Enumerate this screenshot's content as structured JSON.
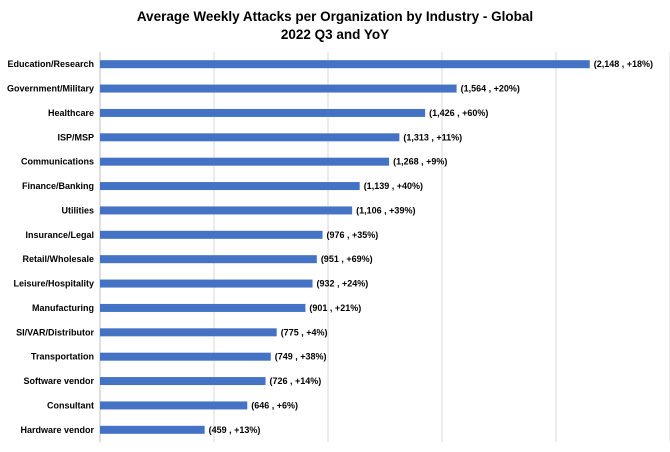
{
  "chart_data": {
    "type": "bar",
    "orientation": "horizontal",
    "title": "Average Weekly Attacks per Organization by Industry - Global",
    "subtitle": "2022 Q3 and YoY",
    "xlabel": "",
    "ylabel": "",
    "categories": [
      "Education/Research",
      "Government/Military",
      "Healthcare",
      "ISP/MSP",
      "Communications",
      "Finance/Banking",
      "Utilities",
      "Insurance/Legal",
      "Retail/Wholesale",
      "Leisure/Hospitality",
      "Manufacturing",
      "SI/VAR/Distributor",
      "Transportation",
      "Software vendor",
      "Consultant",
      "Hardware vendor"
    ],
    "values": [
      2148,
      1564,
      1426,
      1313,
      1268,
      1139,
      1106,
      976,
      951,
      932,
      901,
      775,
      749,
      726,
      646,
      459
    ],
    "yoy_change": [
      "+18%",
      "+20%",
      "+60%",
      "+11%",
      "+9%",
      "+40%",
      "+39%",
      "+35%",
      "+69%",
      "+24%",
      "+21%",
      "+4%",
      "+38%",
      "+14%",
      "+6%",
      "+13%"
    ],
    "data_labels": [
      "(2,148 , +18%)",
      "(1,564 , +20%)",
      "(1,426 , +60%)",
      "(1,313 , +11%)",
      "(1,268 , +9%)",
      "(1,139 , +40%)",
      "(1,106 , +39%)",
      "(976 , +35%)",
      "(951 , +69%)",
      "(932 , +24%)",
      "(901 , +21%)",
      "(775 , +4%)",
      "(749 , +38%)",
      "(726 , +14%)",
      "(646 , +6%)",
      "(459 , +13%)"
    ],
    "xlim": [
      0,
      2500
    ],
    "grid": true,
    "legend": "none",
    "bar_color": "#4472C4"
  }
}
